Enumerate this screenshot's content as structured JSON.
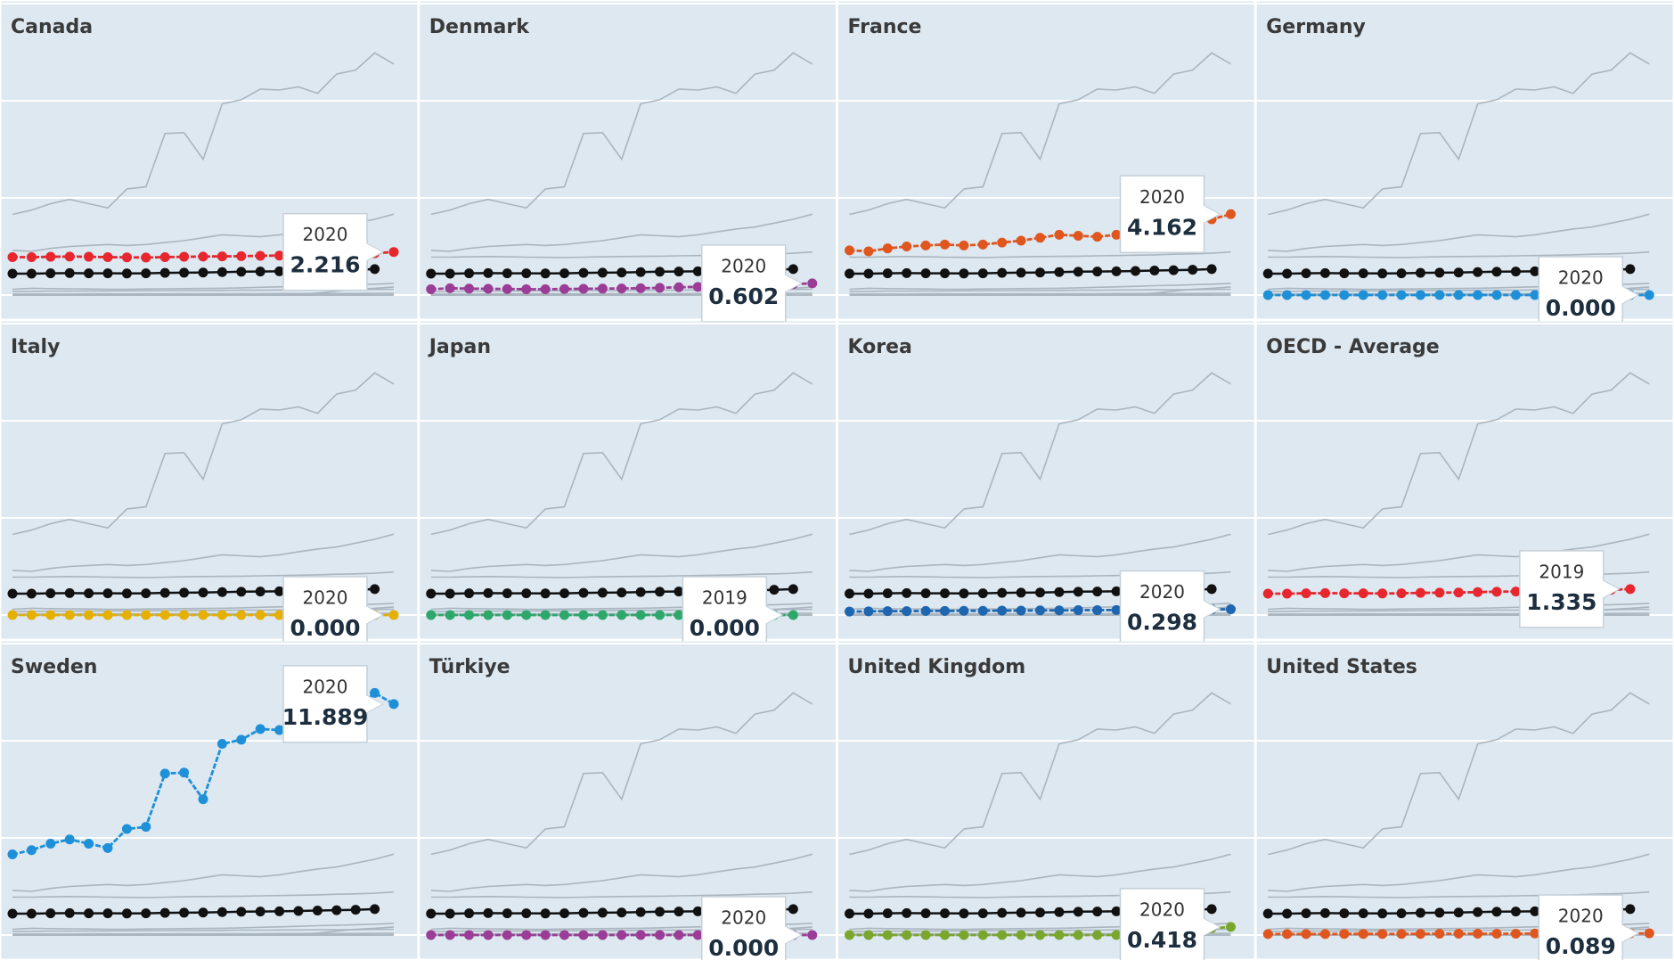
{
  "chart_data": {
    "type": "line",
    "ylim": [
      0,
      15
    ],
    "yticks": [
      0,
      5,
      10,
      15
    ],
    "grid": true,
    "reference": 7,
    "reference_color": "#111111",
    "other_color": "#aab5bf",
    "panels": [
      {
        "title": "Canada",
        "color": "#e8262e",
        "values": [
          1.95,
          1.95,
          1.97,
          1.98,
          1.97,
          1.95,
          1.94,
          1.93,
          1.95,
          1.97,
          1.98,
          1.99,
          2.0,
          2.02,
          2.03,
          2.05,
          2.07,
          2.1,
          2.12,
          2.15,
          2.216
        ],
        "tooltip": {
          "x": "2020",
          "label": "2.216"
        }
      },
      {
        "title": "Denmark",
        "color": "#9b3d96",
        "values": [
          0.3,
          0.35,
          0.33,
          0.32,
          0.31,
          0.3,
          0.3,
          0.31,
          0.32,
          0.33,
          0.34,
          0.35,
          0.37,
          0.4,
          0.42,
          0.45,
          0.48,
          0.5,
          0.53,
          0.56,
          0.602
        ],
        "tooltip": {
          "x": "2020",
          "label": "0.602"
        }
      },
      {
        "title": "France",
        "color": "#e0561f",
        "values": [
          2.3,
          2.25,
          2.4,
          2.5,
          2.55,
          2.6,
          2.55,
          2.6,
          2.7,
          2.8,
          2.95,
          3.1,
          3.05,
          3.0,
          3.1,
          3.25,
          3.4,
          3.5,
          3.7,
          3.9,
          4.162
        ],
        "tooltip": {
          "x": "2020",
          "label": "4.162"
        }
      },
      {
        "title": "Germany",
        "color": "#1e90d8",
        "values": [
          0,
          0,
          0,
          0,
          0,
          0,
          0,
          0,
          0,
          0,
          0,
          0,
          0,
          0,
          0,
          0,
          0,
          0,
          0,
          0,
          0
        ],
        "tooltip": {
          "x": "2020",
          "label": "0.000"
        }
      },
      {
        "title": "Italy",
        "color": "#e6b000",
        "values": [
          0,
          0,
          0,
          0,
          0,
          0,
          0,
          0,
          0,
          0,
          0,
          0,
          0,
          0,
          0,
          0,
          0,
          0,
          0,
          0,
          0
        ],
        "tooltip": {
          "x": "2020",
          "label": "0.000"
        }
      },
      {
        "title": "Japan",
        "color": "#2ea86a",
        "values": [
          0,
          0,
          0,
          0,
          0,
          0,
          0,
          0,
          0,
          0,
          0,
          0,
          0,
          0,
          0,
          0,
          0,
          0,
          0,
          0,
          null
        ],
        "tooltip": {
          "x": "2019",
          "label": "0.000"
        }
      },
      {
        "title": "Korea",
        "color": "#1f66b0",
        "values": [
          0.18,
          0.19,
          0.2,
          0.2,
          0.21,
          0.21,
          0.22,
          0.22,
          0.23,
          0.23,
          0.24,
          0.24,
          0.25,
          0.25,
          0.26,
          0.26,
          0.27,
          0.27,
          0.28,
          0.29,
          0.298
        ],
        "tooltip": {
          "x": "2020",
          "label": "0.298"
        }
      },
      {
        "title": "OECD - Average",
        "color": "#e8262e",
        "values": [
          1.1,
          1.1,
          1.12,
          1.13,
          1.12,
          1.12,
          1.11,
          1.12,
          1.14,
          1.15,
          1.16,
          1.18,
          1.2,
          1.21,
          1.22,
          1.24,
          1.26,
          1.28,
          1.3,
          1.335,
          null
        ],
        "tooltip": {
          "x": "2019",
          "label": "1.335"
        }
      },
      {
        "title": "Sweden",
        "color": "#1e90d8",
        "values": [
          4.15,
          4.37,
          4.7,
          4.92,
          4.7,
          4.48,
          5.46,
          5.57,
          8.31,
          8.36,
          6.99,
          9.84,
          10.05,
          10.6,
          10.55,
          10.71,
          10.38,
          11.37,
          11.58,
          12.46,
          11.889
        ],
        "tooltip": {
          "x": "2020",
          "label": "11.889"
        }
      },
      {
        "title": "Türkiye",
        "color": "#9b3d96",
        "values": [
          0,
          0,
          0,
          0,
          0,
          0,
          0,
          0,
          0,
          0,
          0,
          0,
          0,
          0,
          0,
          0,
          0,
          0,
          0,
          0,
          0
        ],
        "tooltip": {
          "x": "2020",
          "label": "0.000"
        }
      },
      {
        "title": "United Kingdom",
        "color": "#7aa62e",
        "values": [
          0,
          0,
          0,
          0,
          0,
          0,
          0,
          0,
          0,
          0,
          0,
          0,
          0,
          0,
          0,
          0.05,
          0.1,
          0.2,
          0.3,
          0.35,
          0.418
        ],
        "tooltip": {
          "x": "2020",
          "label": "0.418"
        }
      },
      {
        "title": "United States",
        "color": "#e0561f",
        "values": [
          0.05,
          0.05,
          0.05,
          0.05,
          0.06,
          0.06,
          0.06,
          0.06,
          0.06,
          0.07,
          0.07,
          0.07,
          0.07,
          0.07,
          0.08,
          0.08,
          0.08,
          0.08,
          0.08,
          0.085,
          0.089
        ],
        "tooltip": {
          "x": "2020",
          "label": "0.089"
        }
      }
    ]
  }
}
